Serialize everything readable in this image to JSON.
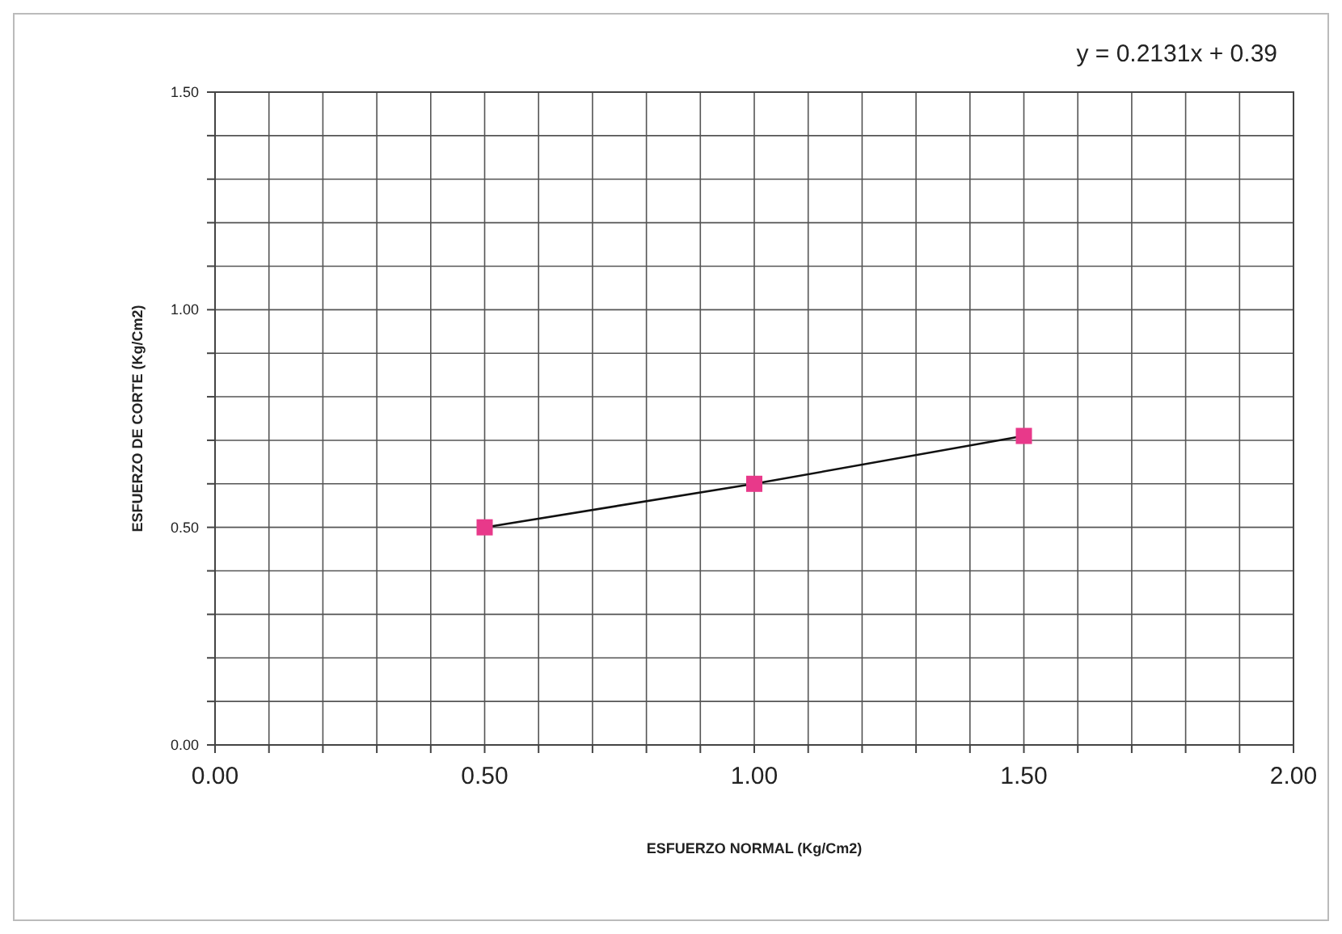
{
  "chart_data": {
    "type": "line",
    "xlabel": "ESFUERZO  NORMAL (Kg/Cm2)",
    "ylabel": "ESFUERZO DE CORTE (Kg/Cm2)",
    "annotations": [
      "y = 0.2131x + 0.39"
    ],
    "x": [
      0.5,
      1.0,
      1.5
    ],
    "series": [
      {
        "color": "#e8398a",
        "values": [
          0.5,
          0.6,
          0.71
        ]
      }
    ],
    "xlim": [
      0,
      2
    ],
    "ylim": [
      0,
      1.5
    ],
    "xticks": [
      {
        "value": 0,
        "label": "0.00"
      },
      {
        "value": 0.1,
        "label": null
      },
      {
        "value": 0.2,
        "label": null
      },
      {
        "value": 0.3,
        "label": null
      },
      {
        "value": 0.4,
        "label": null
      },
      {
        "value": 0.5,
        "label": "0.50"
      },
      {
        "value": 0.6,
        "label": null
      },
      {
        "value": 0.7,
        "label": null
      },
      {
        "value": 0.8,
        "label": null
      },
      {
        "value": 0.9,
        "label": null
      },
      {
        "value": 1.0,
        "label": "1.00"
      },
      {
        "value": 1.1,
        "label": null
      },
      {
        "value": 1.2,
        "label": null
      },
      {
        "value": 1.3,
        "label": null
      },
      {
        "value": 1.4,
        "label": null
      },
      {
        "value": 1.5,
        "label": "1.50"
      },
      {
        "value": 1.6,
        "label": null
      },
      {
        "value": 1.7,
        "label": null
      },
      {
        "value": 1.8,
        "label": null
      },
      {
        "value": 1.9,
        "label": null
      },
      {
        "value": 2.0,
        "label": "2.00"
      }
    ],
    "yticks": [
      {
        "value": 0,
        "label": "0.00"
      },
      {
        "value": 0.1,
        "label": null
      },
      {
        "value": 0.2,
        "label": null
      },
      {
        "value": 0.3,
        "label": null
      },
      {
        "value": 0.4,
        "label": null
      },
      {
        "value": 0.5,
        "label": "0.50"
      },
      {
        "value": 0.6,
        "label": null
      },
      {
        "value": 0.7,
        "label": null
      },
      {
        "value": 0.8,
        "label": null
      },
      {
        "value": 0.9,
        "label": null
      },
      {
        "value": 1.0,
        "label": "1.00"
      },
      {
        "value": 1.1,
        "label": null
      },
      {
        "value": 1.2,
        "label": null
      },
      {
        "value": 1.3,
        "label": null
      },
      {
        "value": 1.4,
        "label": null
      },
      {
        "value": 1.5,
        "label": "1.50"
      }
    ],
    "grid": true,
    "marker": "square",
    "line_style": "solid"
  }
}
